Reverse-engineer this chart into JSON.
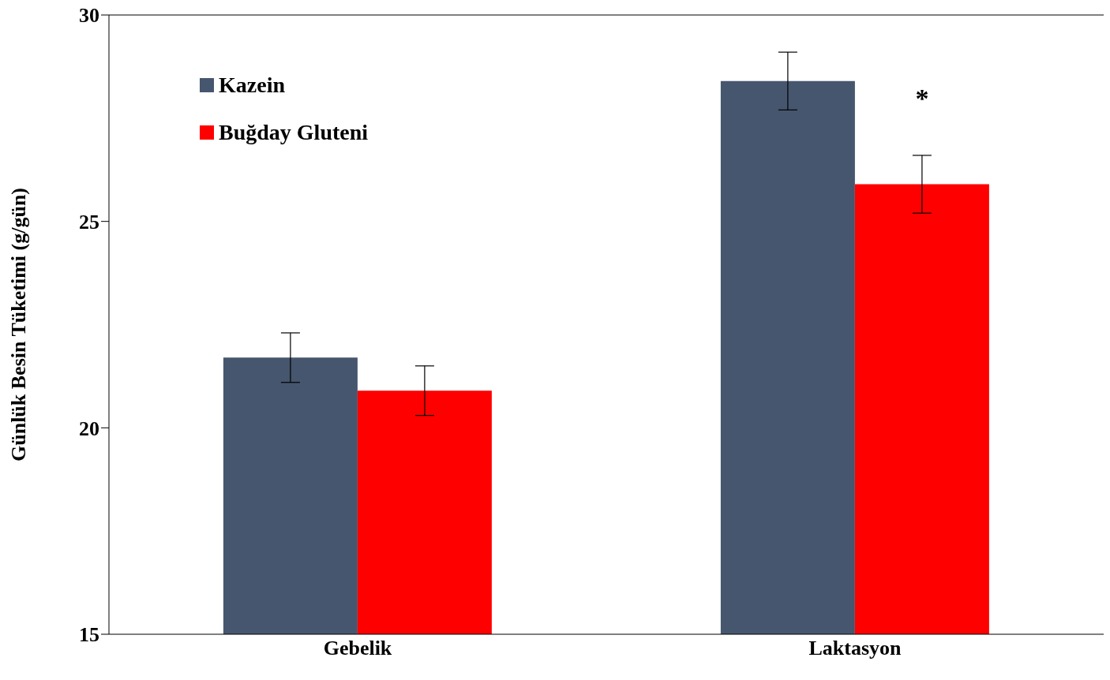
{
  "chart_data": {
    "type": "bar",
    "ylabel": "Günlük Besin Tüketimi (g/gün)",
    "categories": [
      "Gebelik",
      "Laktasyon"
    ],
    "series": [
      {
        "name": "Kazein",
        "color": "#46566e",
        "values": [
          21.7,
          28.4
        ],
        "errors": [
          0.6,
          0.7
        ]
      },
      {
        "name": "Buğday Gluteni",
        "color": "#ff0000",
        "values": [
          20.9,
          25.9
        ],
        "errors": [
          0.6,
          0.7
        ]
      }
    ],
    "ylim": [
      15,
      30
    ],
    "yticks": [
      15,
      20,
      25,
      30
    ],
    "grid": false,
    "legend": "top left",
    "annotations": [
      {
        "text": "*",
        "x": "Laktasyon",
        "y": 28.0
      }
    ]
  }
}
